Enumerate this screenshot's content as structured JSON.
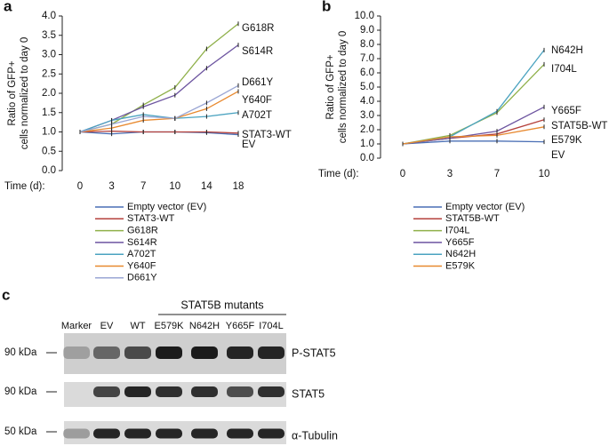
{
  "chart_data": [
    {
      "type": "line",
      "panel": "a",
      "y_label": [
        "Ratio of GFP+",
        "cells normalized to day 0"
      ],
      "x_label": "Time (d):",
      "categories": [
        "0",
        "3",
        "7",
        "10",
        "14",
        "18"
      ],
      "ylim": [
        0,
        4
      ],
      "yticks": [
        {
          "value": 0,
          "label": "0.0"
        },
        0.5,
        {
          "value": 1,
          "label": "1.0"
        },
        1.5,
        {
          "value": 2,
          "label": "2.0"
        },
        2.5,
        {
          "value": 3,
          "label": "3.0"
        },
        3.5,
        {
          "value": 4,
          "label": "4.0"
        }
      ],
      "series": [
        {
          "name": "Empty vector (EV)",
          "end_label": "EV",
          "color": "#4a6fb5",
          "values": [
            1.0,
            0.95,
            1.0,
            1.0,
            0.98,
            0.93
          ]
        },
        {
          "name": "STAT3-WT",
          "end_label": "STAT3-WT",
          "color": "#b5413c",
          "values": [
            1.0,
            1.02,
            1.0,
            1.0,
            1.0,
            0.97
          ]
        },
        {
          "name": "G618R",
          "end_label": "G618R",
          "color": "#8fb04a",
          "values": [
            1.0,
            1.2,
            1.7,
            2.15,
            3.15,
            3.8
          ]
        },
        {
          "name": "S614R",
          "end_label": "S614R",
          "color": "#6d55a0",
          "values": [
            1.0,
            1.3,
            1.65,
            1.95,
            2.65,
            3.25
          ]
        },
        {
          "name": "A702T",
          "end_label": "A702T",
          "color": "#4ba3c0",
          "values": [
            1.0,
            1.3,
            1.45,
            1.35,
            1.4,
            1.5
          ]
        },
        {
          "name": "Y640F",
          "end_label": "Y640F",
          "color": "#e8892f",
          "values": [
            1.0,
            1.1,
            1.3,
            1.35,
            1.6,
            2.05
          ]
        },
        {
          "name": "D661Y",
          "end_label": "D661Y",
          "color": "#9aa6d4",
          "values": [
            1.0,
            1.2,
            1.4,
            1.35,
            1.75,
            2.2
          ]
        }
      ]
    },
    {
      "type": "line",
      "panel": "b",
      "y_label": [
        "Ratio of GFP+",
        "cells normalized to day 0"
      ],
      "x_label": "Time (d):",
      "categories": [
        "0",
        "3",
        "7",
        "10"
      ],
      "ylim": [
        0,
        10
      ],
      "yticks": [
        {
          "value": 0,
          "label": "0.0"
        },
        {
          "value": 1,
          "label": "1.0"
        },
        {
          "value": 2,
          "label": "2.0"
        },
        {
          "value": 3,
          "label": "3.0"
        },
        {
          "value": 4,
          "label": "4.0"
        },
        {
          "value": 5,
          "label": "5.0"
        },
        {
          "value": 6,
          "label": "6.0"
        },
        {
          "value": 7,
          "label": "7.0"
        },
        {
          "value": 8,
          "label": "8.0"
        },
        {
          "value": 9,
          "label": "9.0"
        },
        {
          "value": 10,
          "label": "10.0"
        }
      ],
      "series": [
        {
          "name": "Empty vector (EV)",
          "end_label": "EV",
          "color": "#4a6fb5",
          "values": [
            1.0,
            1.2,
            1.2,
            1.15
          ]
        },
        {
          "name": "STAT5B-WT",
          "end_label": "STAT5B-WT",
          "color": "#b5413c",
          "values": [
            1.0,
            1.4,
            1.7,
            2.7
          ]
        },
        {
          "name": "I704L",
          "end_label": "I704L",
          "color": "#8fb04a",
          "values": [
            1.0,
            1.6,
            3.2,
            6.6
          ]
        },
        {
          "name": "Y665F",
          "end_label": "Y665F",
          "color": "#6d55a0",
          "values": [
            1.0,
            1.4,
            1.9,
            3.6
          ]
        },
        {
          "name": "N642H",
          "end_label": "N642H",
          "color": "#4ba3c0",
          "values": [
            1.0,
            1.5,
            3.3,
            7.6
          ]
        },
        {
          "name": "E579K",
          "end_label": "E579K",
          "color": "#e8892f",
          "values": [
            1.0,
            1.5,
            1.6,
            2.2
          ]
        }
      ]
    }
  ],
  "blot": {
    "panel": "c",
    "group_label": "STAT5B mutants",
    "lanes": [
      "Marker",
      "EV",
      "WT",
      "E579K",
      "N642H",
      "Y665F",
      "I704L"
    ],
    "rows": [
      {
        "marker": "90 kDa",
        "protein": "P-STAT5"
      },
      {
        "marker": "90 kDa",
        "protein": "STAT5"
      },
      {
        "marker": "50 kDa",
        "protein": "α-Tubulin"
      }
    ]
  }
}
